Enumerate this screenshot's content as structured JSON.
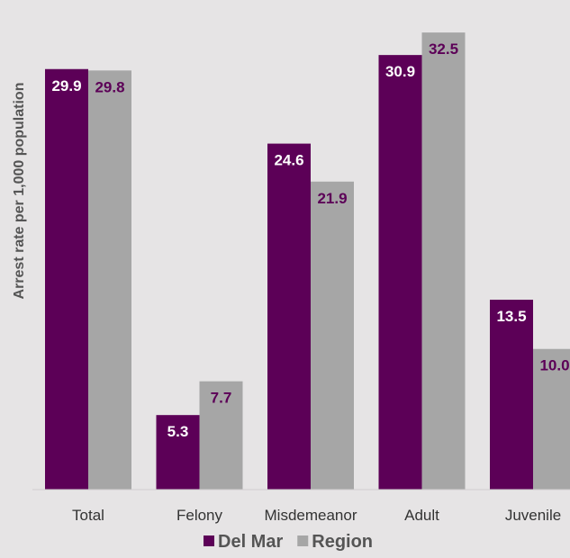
{
  "chart_data": {
    "type": "bar",
    "title": "",
    "xlabel": "",
    "ylabel": "Arrest rate per 1,000 population",
    "categories": [
      "Total",
      "Felony",
      "Misdemeanor",
      "Adult",
      "Juvenile"
    ],
    "series": [
      {
        "name": "Del Mar",
        "values": [
          29.9,
          5.3,
          24.6,
          30.9,
          13.5
        ],
        "color": "#5c0057",
        "label_color": "#ffffff"
      },
      {
        "name": "Region",
        "values": [
          29.8,
          7.7,
          21.9,
          32.5,
          10.0
        ],
        "color": "#a6a6a6",
        "label_color": "#5c0057"
      }
    ],
    "ylim": [
      0,
      34.3
    ],
    "grid": false,
    "legend_position": "bottom-center"
  }
}
